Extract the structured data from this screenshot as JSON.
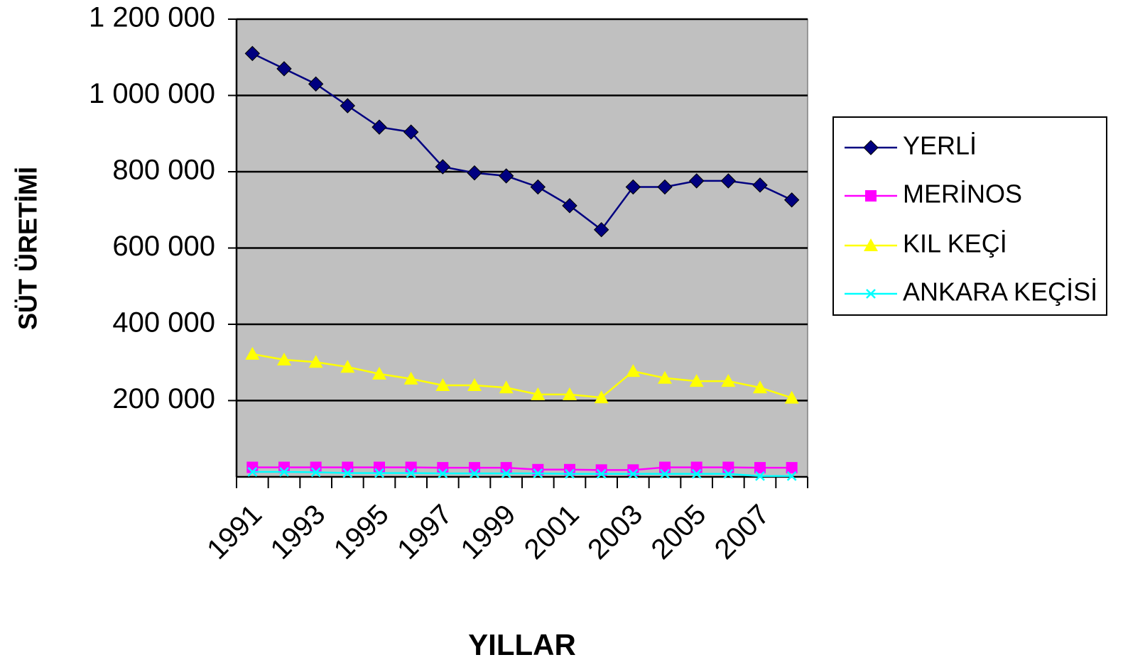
{
  "chart_data": {
    "type": "line",
    "y_label": "SÜT ÜRETİMİ",
    "x_label": "YILLAR",
    "categories": [
      "1991",
      null,
      "1993",
      null,
      "1995",
      null,
      "1997",
      null,
      "1999",
      null,
      "2001",
      null,
      "2003",
      null,
      "2005",
      null,
      "2007",
      null
    ],
    "series": [
      {
        "name": "YERLİ",
        "color": "#000080",
        "marker": "diamond",
        "values": [
          1110000,
          1070000,
          1030000,
          973000,
          917000,
          904000,
          813000,
          797000,
          789000,
          760000,
          711000,
          648000,
          760000,
          760000,
          776000,
          776000,
          765000,
          726000
        ]
      },
      {
        "name": "MERİNOS",
        "color": "#ff00ff",
        "marker": "square",
        "values": [
          25000,
          25000,
          25000,
          25000,
          25000,
          25000,
          24000,
          24000,
          24000,
          19000,
          19000,
          18000,
          18000,
          25000,
          25000,
          25000,
          24000,
          24000
        ]
      },
      {
        "name": "KIL KEÇİ",
        "color": "#ffff00",
        "marker": "triangle",
        "values": [
          322000,
          307000,
          301000,
          288000,
          270000,
          257000,
          240000,
          240000,
          234000,
          216000,
          216000,
          208000,
          277000,
          259000,
          251000,
          251000,
          234000,
          207000
        ]
      },
      {
        "name": "ANKARA KEÇİSİ",
        "color": "#00ffff",
        "marker": "x",
        "values": [
          13000,
          13000,
          12000,
          10000,
          10000,
          10000,
          9000,
          9000,
          9000,
          9000,
          8000,
          8000,
          8000,
          8000,
          8000,
          8000,
          2000,
          2000
        ]
      }
    ],
    "ylim": [
      0,
      1200000
    ],
    "yticks": [
      {
        "value": 200000,
        "label": "200 000"
      },
      {
        "value": 400000,
        "label": "400 000"
      },
      {
        "value": 600000,
        "label": "600 000"
      },
      {
        "value": 800000,
        "label": "800 000"
      },
      {
        "value": 1000000,
        "label": "1 000 000"
      },
      {
        "value": 1200000,
        "label": "1 200 000"
      }
    ],
    "grid": true,
    "legend": "right",
    "plot_background": "#c0c0c0"
  }
}
